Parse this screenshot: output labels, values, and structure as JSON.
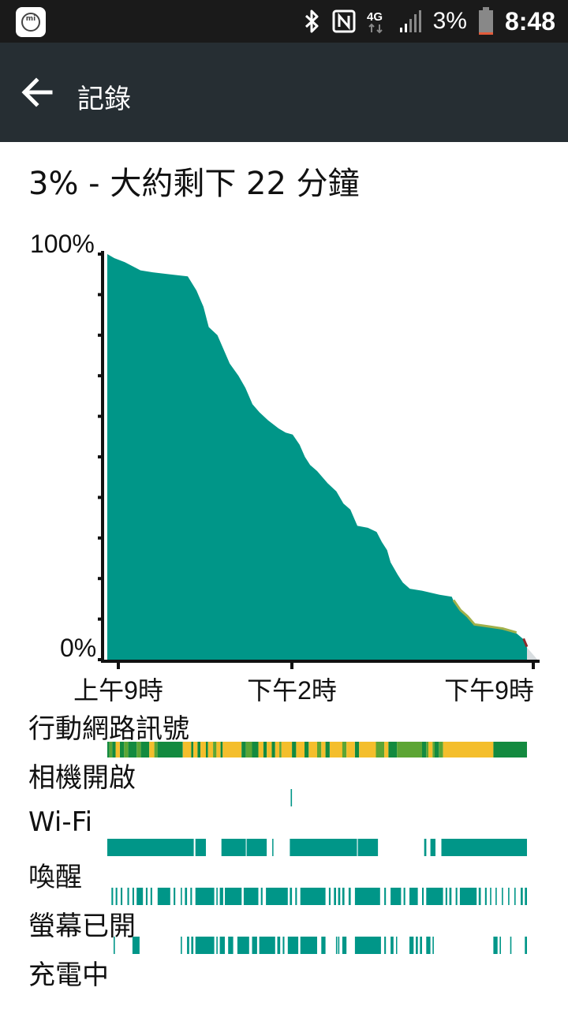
{
  "status_bar": {
    "battery_percent": "3%",
    "time": "8:48",
    "network": "4G",
    "icons": [
      "mi-icon",
      "bluetooth-icon",
      "nfc-icon",
      "4g-icon",
      "signal-icon",
      "battery-icon"
    ]
  },
  "app_bar": {
    "title": "記錄",
    "back_icon": "arrow-left-icon"
  },
  "summary": {
    "text": "3% - 大約剩下 22 分鐘"
  },
  "colors": {
    "teal": "#009688",
    "dark_green": "#138a3f",
    "mid_green": "#5ca534",
    "yellow": "#f4be2c",
    "statusbar": "#1a1a1a",
    "appbar": "#262e33",
    "low_line": "#a0b04a",
    "critical_line": "#8b2b2b"
  },
  "chart_data": {
    "type": "area",
    "y_top_label": "100%",
    "y_bottom_label": "0%",
    "x_tick_labels": [
      "上午9時",
      "下午2時",
      "下午9時"
    ],
    "x_ticks_hours": [
      9,
      14,
      21
    ],
    "x_range_hours": [
      8.0,
      20.0
    ],
    "projection_end_hours": 20.3,
    "ylim": [
      0,
      100
    ],
    "points": [
      [
        8.0,
        100
      ],
      [
        8.2,
        99
      ],
      [
        8.5,
        98
      ],
      [
        8.95,
        96
      ],
      [
        9.3,
        95.5
      ],
      [
        9.8,
        95
      ],
      [
        10.3,
        94.5
      ],
      [
        10.55,
        91
      ],
      [
        10.75,
        87
      ],
      [
        10.9,
        82
      ],
      [
        11.15,
        80
      ],
      [
        11.5,
        73
      ],
      [
        11.75,
        70
      ],
      [
        11.95,
        67
      ],
      [
        12.15,
        63
      ],
      [
        12.35,
        61
      ],
      [
        12.6,
        59
      ],
      [
        12.9,
        57
      ],
      [
        13.1,
        56
      ],
      [
        13.3,
        55.5
      ],
      [
        13.5,
        53
      ],
      [
        13.65,
        50
      ],
      [
        13.8,
        48
      ],
      [
        14.0,
        46.5
      ],
      [
        14.3,
        43.5
      ],
      [
        14.55,
        41.5
      ],
      [
        14.75,
        38.5
      ],
      [
        14.95,
        37
      ],
      [
        15.15,
        33
      ],
      [
        15.45,
        32.5
      ],
      [
        15.7,
        31.5
      ],
      [
        15.85,
        29
      ],
      [
        16.0,
        27
      ],
      [
        16.1,
        24
      ],
      [
        16.3,
        21
      ],
      [
        16.45,
        19
      ],
      [
        16.65,
        17.5
      ],
      [
        17.0,
        17
      ],
      [
        17.5,
        16
      ],
      [
        17.85,
        15.5
      ],
      [
        17.9,
        14.5
      ],
      [
        18.1,
        12
      ],
      [
        18.3,
        10.5
      ],
      [
        18.5,
        8.5
      ],
      [
        18.9,
        8
      ],
      [
        19.3,
        7.5
      ],
      [
        19.7,
        6.5
      ],
      [
        19.9,
        5
      ],
      [
        20.0,
        3
      ]
    ],
    "low_segment_from_hours": 17.9,
    "critical_segment_from_hours": 19.8
  },
  "tracks": [
    {
      "label": "行動網路訊號",
      "segments": [
        [
          0,
          0.005,
          "#138a3f"
        ],
        [
          0.005,
          0.012,
          "#5ca534"
        ],
        [
          0.012,
          0.02,
          "#138a3f"
        ],
        [
          0.02,
          0.03,
          "#f4be2c"
        ],
        [
          0.03,
          0.04,
          "#138a3f"
        ],
        [
          0.04,
          0.05,
          "#5ca534"
        ],
        [
          0.05,
          0.07,
          "#138a3f"
        ],
        [
          0.07,
          0.08,
          "#5ca534"
        ],
        [
          0.08,
          0.1,
          "#138a3f"
        ],
        [
          0.1,
          0.112,
          "#f4be2c"
        ],
        [
          0.112,
          0.12,
          "#5ca534"
        ],
        [
          0.12,
          0.18,
          "#138a3f"
        ],
        [
          0.18,
          0.2,
          "#f4be2c"
        ],
        [
          0.2,
          0.205,
          "#138a3f"
        ],
        [
          0.205,
          0.215,
          "#f4be2c"
        ],
        [
          0.215,
          0.222,
          "#138a3f"
        ],
        [
          0.222,
          0.235,
          "#f4be2c"
        ],
        [
          0.235,
          0.24,
          "#138a3f"
        ],
        [
          0.24,
          0.252,
          "#f4be2c"
        ],
        [
          0.252,
          0.26,
          "#5ca534"
        ],
        [
          0.26,
          0.27,
          "#f4be2c"
        ],
        [
          0.27,
          0.275,
          "#138a3f"
        ],
        [
          0.275,
          0.32,
          "#f4be2c"
        ],
        [
          0.32,
          0.33,
          "#138a3f"
        ],
        [
          0.33,
          0.345,
          "#5ca534"
        ],
        [
          0.345,
          0.36,
          "#138a3f"
        ],
        [
          0.36,
          0.372,
          "#f4be2c"
        ],
        [
          0.372,
          0.38,
          "#138a3f"
        ],
        [
          0.38,
          0.392,
          "#f4be2c"
        ],
        [
          0.392,
          0.4,
          "#138a3f"
        ],
        [
          0.4,
          0.41,
          "#f4be2c"
        ],
        [
          0.41,
          0.415,
          "#5ca534"
        ],
        [
          0.415,
          0.44,
          "#f4be2c"
        ],
        [
          0.44,
          0.45,
          "#138a3f"
        ],
        [
          0.45,
          0.47,
          "#f4be2c"
        ],
        [
          0.47,
          0.48,
          "#138a3f"
        ],
        [
          0.48,
          0.5,
          "#f4be2c"
        ],
        [
          0.5,
          0.51,
          "#5ca534"
        ],
        [
          0.51,
          0.52,
          "#f4be2c"
        ],
        [
          0.52,
          0.53,
          "#138a3f"
        ],
        [
          0.53,
          0.56,
          "#f4be2c"
        ],
        [
          0.56,
          0.57,
          "#5ca534"
        ],
        [
          0.57,
          0.59,
          "#f4be2c"
        ],
        [
          0.59,
          0.6,
          "#138a3f"
        ],
        [
          0.6,
          0.64,
          "#f4be2c"
        ],
        [
          0.64,
          0.66,
          "#5ca534"
        ],
        [
          0.66,
          0.67,
          "#f4be2c"
        ],
        [
          0.67,
          0.69,
          "#138a3f"
        ],
        [
          0.69,
          0.75,
          "#5ca534"
        ],
        [
          0.75,
          0.76,
          "#138a3f"
        ],
        [
          0.76,
          0.765,
          "#5ca534"
        ],
        [
          0.765,
          0.775,
          "#f4be2c"
        ],
        [
          0.775,
          0.78,
          "#5ca534"
        ],
        [
          0.78,
          0.79,
          "#138a3f"
        ],
        [
          0.79,
          0.8,
          "#5ca534"
        ],
        [
          0.8,
          0.92,
          "#f4be2c"
        ],
        [
          0.92,
          1,
          "#138a3f"
        ]
      ]
    },
    {
      "label": "相機開啟",
      "segments": [
        [
          0.437,
          0.44,
          "#009688"
        ]
      ]
    },
    {
      "label": "Wi-Fi",
      "segments": [
        [
          0,
          0.206,
          "#009688"
        ],
        [
          0.21,
          0.235,
          "#009688"
        ],
        [
          0.272,
          0.33,
          "#009688"
        ],
        [
          0.332,
          0.38,
          "#009688"
        ],
        [
          0.393,
          0.395,
          "#009688"
        ],
        [
          0.435,
          0.595,
          "#009688"
        ],
        [
          0.597,
          0.645,
          "#009688"
        ],
        [
          0.755,
          0.76,
          "#009688"
        ],
        [
          0.77,
          0.782,
          "#009688"
        ],
        [
          0.796,
          1,
          "#009688"
        ]
      ]
    },
    {
      "label": "喚醒",
      "segments": [
        [
          0.01,
          0.014,
          "#009688"
        ],
        [
          0.02,
          0.024,
          "#009688"
        ],
        [
          0.032,
          0.036,
          "#009688"
        ],
        [
          0.048,
          0.052,
          "#009688"
        ],
        [
          0.06,
          0.064,
          "#009688"
        ],
        [
          0.07,
          0.085,
          "#009688"
        ],
        [
          0.092,
          0.096,
          "#009688"
        ],
        [
          0.103,
          0.107,
          "#009688"
        ],
        [
          0.12,
          0.15,
          "#009688"
        ],
        [
          0.158,
          0.162,
          "#009688"
        ],
        [
          0.175,
          0.178,
          "#009688"
        ],
        [
          0.185,
          0.19,
          "#009688"
        ],
        [
          0.198,
          0.202,
          "#009688"
        ],
        [
          0.21,
          0.255,
          "#009688"
        ],
        [
          0.26,
          0.263,
          "#009688"
        ],
        [
          0.268,
          0.276,
          "#009688"
        ],
        [
          0.28,
          0.32,
          "#009688"
        ],
        [
          0.325,
          0.36,
          "#009688"
        ],
        [
          0.366,
          0.37,
          "#009688"
        ],
        [
          0.378,
          0.43,
          "#009688"
        ],
        [
          0.435,
          0.44,
          "#009688"
        ],
        [
          0.448,
          0.452,
          "#009688"
        ],
        [
          0.46,
          0.52,
          "#009688"
        ],
        [
          0.528,
          0.532,
          "#009688"
        ],
        [
          0.54,
          0.545,
          "#009688"
        ],
        [
          0.55,
          0.555,
          "#009688"
        ],
        [
          0.56,
          0.565,
          "#009688"
        ],
        [
          0.575,
          0.58,
          "#009688"
        ],
        [
          0.59,
          0.65,
          "#009688"
        ],
        [
          0.66,
          0.664,
          "#009688"
        ],
        [
          0.675,
          0.7,
          "#009688"
        ],
        [
          0.706,
          0.71,
          "#009688"
        ],
        [
          0.72,
          0.74,
          "#009688"
        ],
        [
          0.75,
          0.754,
          "#009688"
        ],
        [
          0.76,
          0.8,
          "#009688"
        ],
        [
          0.806,
          0.81,
          "#009688"
        ],
        [
          0.815,
          0.82,
          "#009688"
        ],
        [
          0.83,
          0.834,
          "#009688"
        ],
        [
          0.84,
          0.88,
          "#009688"
        ],
        [
          0.885,
          0.89,
          "#009688"
        ],
        [
          0.9,
          0.904,
          "#009688"
        ],
        [
          0.912,
          0.915,
          "#009688"
        ],
        [
          0.925,
          0.928,
          "#009688"
        ],
        [
          0.94,
          0.943,
          "#009688"
        ],
        [
          0.955,
          0.958,
          "#009688"
        ],
        [
          0.97,
          0.973,
          "#009688"
        ],
        [
          0.985,
          0.99,
          "#009688"
        ],
        [
          0.995,
          1,
          "#009688"
        ]
      ]
    },
    {
      "label": "螢幕已開",
      "segments": [
        [
          0.015,
          0.018,
          "#009688"
        ],
        [
          0.06,
          0.077,
          "#009688"
        ],
        [
          0.175,
          0.178,
          "#009688"
        ],
        [
          0.19,
          0.195,
          "#009688"
        ],
        [
          0.2,
          0.205,
          "#009688"
        ],
        [
          0.21,
          0.255,
          "#009688"
        ],
        [
          0.26,
          0.263,
          "#009688"
        ],
        [
          0.268,
          0.28,
          "#009688"
        ],
        [
          0.288,
          0.3,
          "#009688"
        ],
        [
          0.31,
          0.338,
          "#009688"
        ],
        [
          0.345,
          0.357,
          "#009688"
        ],
        [
          0.362,
          0.4,
          "#009688"
        ],
        [
          0.405,
          0.412,
          "#009688"
        ],
        [
          0.418,
          0.422,
          "#009688"
        ],
        [
          0.43,
          0.455,
          "#009688"
        ],
        [
          0.46,
          0.5,
          "#009688"
        ],
        [
          0.51,
          0.52,
          "#009688"
        ],
        [
          0.545,
          0.548,
          "#009688"
        ],
        [
          0.55,
          0.553,
          "#009688"
        ],
        [
          0.56,
          0.57,
          "#009688"
        ],
        [
          0.59,
          0.652,
          "#009688"
        ],
        [
          0.66,
          0.664,
          "#009688"
        ],
        [
          0.675,
          0.682,
          "#009688"
        ],
        [
          0.688,
          0.69,
          "#009688"
        ],
        [
          0.72,
          0.73,
          "#009688"
        ],
        [
          0.735,
          0.74,
          "#009688"
        ],
        [
          0.745,
          0.75,
          "#009688"
        ],
        [
          0.76,
          0.77,
          "#009688"
        ],
        [
          0.775,
          0.778,
          "#009688"
        ],
        [
          0.92,
          0.93,
          "#009688"
        ],
        [
          0.935,
          0.938,
          "#009688"
        ],
        [
          0.96,
          0.963,
          "#009688"
        ],
        [
          0.995,
          1,
          "#009688"
        ]
      ]
    },
    {
      "label": "充電中",
      "segments": []
    }
  ]
}
